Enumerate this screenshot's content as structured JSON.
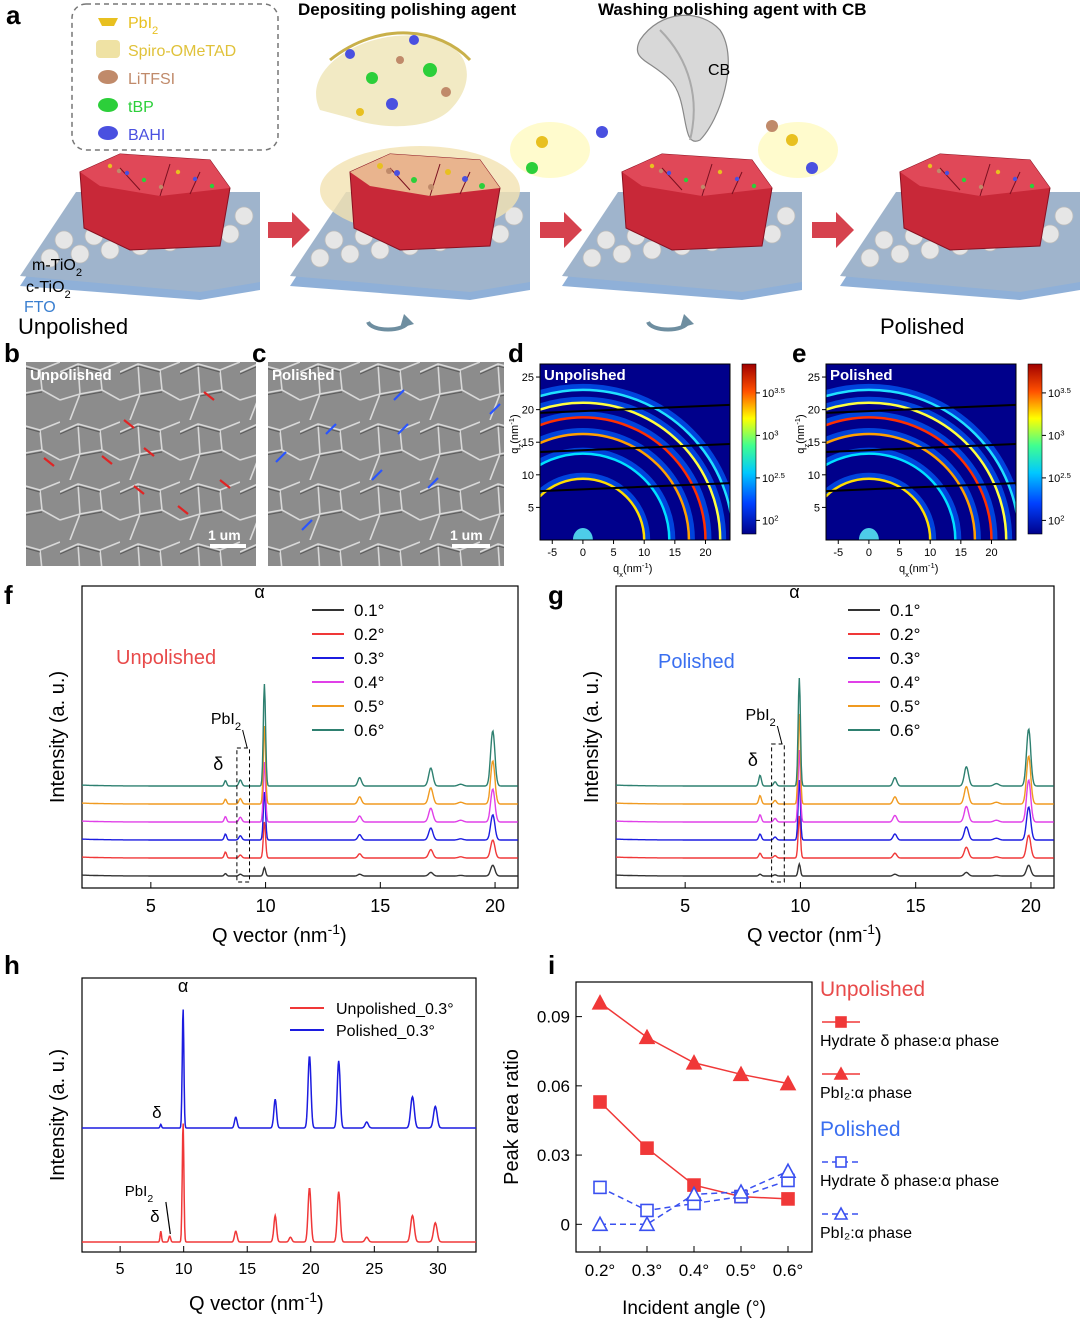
{
  "panels": {
    "a": {
      "label": "a",
      "legend": [
        {
          "text": "PbI",
          "sub": "2",
          "color": "#e8c020",
          "icon": "pbi2-icon"
        },
        {
          "text": "Spiro-OMeTAD",
          "sub": "",
          "color": "#e0c23a",
          "icon": "spiro-icon"
        },
        {
          "text": "LiTFSI",
          "sub": "",
          "color": "#c08a6a",
          "icon": "litfsi-icon"
        },
        {
          "text": "tBP",
          "sub": "",
          "color": "#2ccf3a",
          "icon": "tbp-icon"
        },
        {
          "text": "BAHI",
          "sub": "",
          "color": "#4a50e0",
          "icon": "bahi-icon"
        }
      ],
      "step2_title": "Depositing polishing agent",
      "step3_title": "Washing polishing agent with CB",
      "cb_label": "CB",
      "layers": [
        {
          "text": "m-TiO",
          "sub": "2",
          "color": "#000000"
        },
        {
          "text": "c-TiO",
          "sub": "2",
          "color": "#000000"
        },
        {
          "text": "FTO",
          "sub": "",
          "color": "#3a7fd0"
        }
      ],
      "unpolished_label": "Unpolished",
      "polished_label": "Polished",
      "colors": {
        "unpolished": "#e84a4a",
        "polished": "#3a6ff0",
        "arrow": "#d6424e",
        "perovskite": "#c82838",
        "substrate": "#9fb4cc"
      }
    },
    "b": {
      "label": "b",
      "title": "Unpolished",
      "scale": "1 um"
    },
    "c": {
      "label": "c",
      "title": "Polished",
      "scale": "1 um"
    },
    "d": {
      "label": "d",
      "title": "Unpolished"
    },
    "e": {
      "label": "e",
      "title": "Polished"
    },
    "f": {
      "label": "f",
      "title": "Unpolished"
    },
    "g": {
      "label": "g",
      "title": "Polished"
    },
    "h": {
      "label": "h"
    },
    "i": {
      "label": "i"
    }
  },
  "chart_data": [
    {
      "id": "d",
      "type": "heatmap",
      "title": "Unpolished",
      "xlabel": "q",
      "xlabel_sub": "x",
      "xlabel_unit": "(nm",
      "xlabel_sup": "-1",
      "xlabel_end": ")",
      "ylabel": "q",
      "ylabel_sub": "z",
      "ylabel_unit": "(nm",
      "ylabel_sup": "-1",
      "ylabel_end": ")",
      "xlim": [
        -7,
        24
      ],
      "ylim": [
        0,
        27
      ],
      "xticks": [
        -5,
        0,
        5,
        10,
        15,
        20
      ],
      "yticks": [
        0,
        5,
        10,
        15,
        20,
        25
      ],
      "colorbar_ticks": [
        {
          "base": "10",
          "exp": "3.5",
          "frac": 0.17
        },
        {
          "base": "10",
          "exp": "3",
          "frac": 0.42
        },
        {
          "base": "10",
          "exp": "2.5",
          "frac": 0.67
        },
        {
          "base": "10",
          "exp": "2",
          "frac": 0.92
        }
      ],
      "rings": [
        10.0,
        14.1,
        17.3,
        20.0,
        22.4,
        24.5
      ],
      "colormap": [
        "#00008b",
        "#0050ff",
        "#00d0ff",
        "#40ff80",
        "#ffff00",
        "#ff6000",
        "#b00000"
      ]
    },
    {
      "id": "e",
      "type": "heatmap",
      "title": "Polished",
      "xlabel": "q",
      "xlabel_sub": "x",
      "xlabel_unit": "(nm",
      "xlabel_sup": "-1",
      "xlabel_end": ")",
      "ylabel": "q",
      "ylabel_sub": "z",
      "ylabel_unit": "(nm",
      "ylabel_sup": "-1",
      "ylabel_end": ")",
      "xlim": [
        -7,
        24
      ],
      "ylim": [
        0,
        27
      ],
      "xticks": [
        -5,
        0,
        5,
        10,
        15,
        20
      ],
      "yticks": [
        0,
        5,
        10,
        15,
        20,
        25
      ],
      "colorbar_ticks": [
        {
          "base": "10",
          "exp": "3.5",
          "frac": 0.17
        },
        {
          "base": "10",
          "exp": "3",
          "frac": 0.42
        },
        {
          "base": "10",
          "exp": "2.5",
          "frac": 0.67
        },
        {
          "base": "10",
          "exp": "2",
          "frac": 0.92
        }
      ],
      "rings": [
        10.0,
        14.1,
        17.3,
        20.0,
        22.4,
        24.5
      ],
      "colormap": [
        "#00008b",
        "#0050ff",
        "#00d0ff",
        "#40ff80",
        "#ffff00",
        "#ff6000",
        "#b00000"
      ]
    },
    {
      "id": "f",
      "type": "line",
      "title": "Unpolished",
      "xlabel": "Q vector (nm",
      "xlabel_sup": "-1",
      "xlabel_end": ")",
      "ylabel": "Intensity (a. u.)",
      "xlim": [
        2,
        21
      ],
      "xticks": [
        5,
        10,
        15,
        20
      ],
      "annotations": {
        "alpha": "α",
        "delta": "δ",
        "pbi2": "PbI",
        "pbi2_sub": "2"
      },
      "peaks": [
        {
          "x": 8.25,
          "w": 0.07
        },
        {
          "x": 8.9,
          "w": 0.09
        },
        {
          "x": 9.95,
          "w": 0.07
        },
        {
          "x": 14.1,
          "w": 0.11
        },
        {
          "x": 17.2,
          "w": 0.13
        },
        {
          "x": 18.5,
          "w": 0.15
        },
        {
          "x": 19.9,
          "w": 0.13
        }
      ],
      "series": [
        {
          "name": "0.1°",
          "color": "#333333",
          "amps": [
            4,
            3,
            14,
            3,
            6,
            1,
            18
          ]
        },
        {
          "name": "0.2°",
          "color": "#f03838",
          "amps": [
            10,
            5,
            60,
            7,
            14,
            2,
            30
          ]
        },
        {
          "name": "0.3°",
          "color": "#1c1ce0",
          "amps": [
            10,
            7,
            80,
            9,
            20,
            2,
            42
          ]
        },
        {
          "name": "0.4°",
          "color": "#e040e8",
          "amps": [
            9,
            8,
            100,
            10,
            23,
            3,
            55
          ]
        },
        {
          "name": "0.5°",
          "color": "#f09a20",
          "amps": [
            8,
            9,
            130,
            12,
            27,
            3,
            72
          ]
        },
        {
          "name": "0.6°",
          "color": "#2e8070",
          "amps": [
            9,
            10,
            170,
            14,
            30,
            3,
            92
          ]
        }
      ]
    },
    {
      "id": "g",
      "type": "line",
      "title": "Polished",
      "xlabel": "Q vector (nm",
      "xlabel_sup": "-1",
      "xlabel_end": ")",
      "ylabel": "Intensity (a. u.)",
      "xlim": [
        2,
        21
      ],
      "xticks": [
        5,
        10,
        15,
        20
      ],
      "annotations": {
        "alpha": "α",
        "delta": "δ",
        "pbi2": "PbI",
        "pbi2_sub": "2"
      },
      "peaks": [
        {
          "x": 8.25,
          "w": 0.08
        },
        {
          "x": 8.9,
          "w": 0.09
        },
        {
          "x": 9.95,
          "w": 0.07
        },
        {
          "x": 14.1,
          "w": 0.11
        },
        {
          "x": 17.2,
          "w": 0.13
        },
        {
          "x": 18.5,
          "w": 0.15
        },
        {
          "x": 19.9,
          "w": 0.13
        }
      ],
      "series": [
        {
          "name": "0.1°",
          "color": "#333333",
          "amps": [
            3,
            2,
            20,
            3,
            6,
            1,
            18
          ]
        },
        {
          "name": "0.2°",
          "color": "#f03838",
          "amps": [
            8,
            4,
            70,
            8,
            18,
            2,
            38
          ]
        },
        {
          "name": "0.3°",
          "color": "#1c1ce0",
          "amps": [
            10,
            5,
            100,
            10,
            22,
            3,
            55
          ]
        },
        {
          "name": "0.4°",
          "color": "#e040e8",
          "amps": [
            12,
            6,
            120,
            11,
            26,
            3,
            70
          ]
        },
        {
          "name": "0.5°",
          "color": "#f09a20",
          "amps": [
            14,
            6,
            150,
            12,
            29,
            3,
            80
          ]
        },
        {
          "name": "0.6°",
          "color": "#2e8070",
          "amps": [
            18,
            7,
            180,
            14,
            32,
            4,
            95
          ]
        }
      ]
    },
    {
      "id": "h",
      "type": "line",
      "xlabel": "Q vector (nm",
      "xlabel_sup": "-1",
      "xlabel_end": ")",
      "ylabel": "Intensity (a. u.)",
      "xlim": [
        2,
        33
      ],
      "xticks": [
        5,
        10,
        15,
        20,
        25,
        30
      ],
      "annotations": {
        "alpha": "α",
        "delta": "δ",
        "pbi2": "PbI",
        "pbi2_sub": "2"
      },
      "peaks": [
        {
          "x": 8.2,
          "w": 0.08
        },
        {
          "x": 8.9,
          "w": 0.1
        },
        {
          "x": 9.95,
          "w": 0.09
        },
        {
          "x": 14.1,
          "w": 0.14
        },
        {
          "x": 17.2,
          "w": 0.15
        },
        {
          "x": 18.4,
          "w": 0.15
        },
        {
          "x": 19.9,
          "w": 0.16
        },
        {
          "x": 22.2,
          "w": 0.16
        },
        {
          "x": 24.4,
          "w": 0.18
        },
        {
          "x": 28.0,
          "w": 0.2
        },
        {
          "x": 29.8,
          "w": 0.2
        }
      ],
      "series": [
        {
          "name": "Unpolished_0.3°",
          "color": "#f03838",
          "amps": [
            9,
            5,
            100,
            9,
            22,
            4,
            45,
            42,
            4,
            22,
            16
          ]
        },
        {
          "name": "Polished_0.3°",
          "color": "#1c1ce0",
          "amps": [
            3,
            0,
            100,
            9,
            24,
            0,
            60,
            56,
            5,
            26,
            18
          ]
        }
      ]
    },
    {
      "id": "i",
      "type": "line",
      "xlabel": "Incident angle (°)",
      "ylabel": "Peak area ratio",
      "categories": [
        "0.2°",
        "0.3°",
        "0.4°",
        "0.5°",
        "0.6°"
      ],
      "ylim": [
        -0.012,
        0.105
      ],
      "yticks": [
        0,
        0.03,
        0.06,
        0.09
      ],
      "ytick_labels": [
        "0",
        "0.03",
        "0.06",
        "0.09"
      ],
      "legend_groups": [
        {
          "title": "Unpolished",
          "color": "#e84a4a"
        },
        {
          "title": "Polished",
          "color": "#3a6ff0"
        }
      ],
      "series": [
        {
          "name": "Hydrate δ phase:α phase",
          "group": "Unpolished",
          "color": "#f03838",
          "marker": "square-filled",
          "dash": false,
          "values": [
            0.053,
            0.033,
            0.017,
            0.012,
            0.011
          ]
        },
        {
          "name": "PbI₂:α phase",
          "group": "Unpolished",
          "color": "#f03838",
          "marker": "triangle-filled",
          "dash": false,
          "values": [
            0.096,
            0.081,
            0.07,
            0.065,
            0.061
          ]
        },
        {
          "name": "Hydrate δ phase:α phase",
          "group": "Polished",
          "color": "#3a50f0",
          "marker": "square-open",
          "dash": true,
          "values": [
            0.016,
            0.006,
            0.009,
            0.012,
            0.019
          ]
        },
        {
          "name": "PbI₂:α phase",
          "group": "Polished",
          "color": "#3a50f0",
          "marker": "triangle-open",
          "dash": true,
          "values": [
            0.0,
            0.0,
            0.013,
            0.014,
            0.023
          ]
        }
      ]
    }
  ]
}
